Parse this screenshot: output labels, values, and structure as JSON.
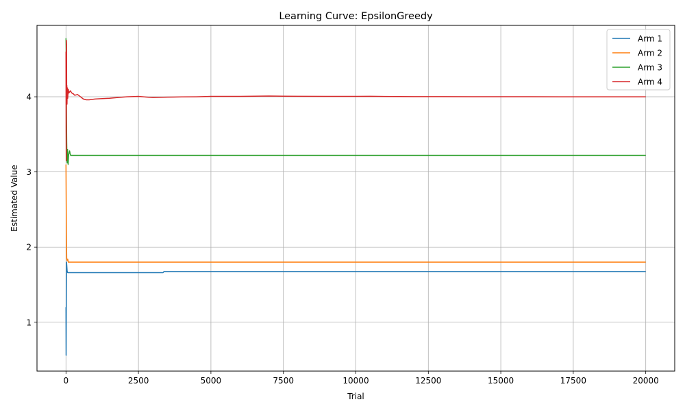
{
  "chart_data": {
    "type": "line",
    "title": "Learning Curve: EpsilonGreedy",
    "xlabel": "Trial",
    "ylabel": "Estimated Value",
    "xlim": [
      -1000,
      21000
    ],
    "ylim": [
      0.35,
      4.95
    ],
    "x_ticks": [
      0,
      2500,
      5000,
      7500,
      10000,
      12500,
      15000,
      17500,
      20000
    ],
    "x_tick_labels": [
      "0",
      "2500",
      "5000",
      "7500",
      "10000",
      "12500",
      "15000",
      "17500",
      "20000"
    ],
    "y_ticks": [
      1,
      2,
      3,
      4
    ],
    "y_tick_labels": [
      "1",
      "2",
      "3",
      "4"
    ],
    "grid": true,
    "legend_position": "top-right",
    "series": [
      {
        "name": "Arm 1",
        "color": "#1f77b4",
        "points": [
          [
            0,
            1.2
          ],
          [
            5,
            0.56
          ],
          [
            12,
            1.4
          ],
          [
            20,
            1.8
          ],
          [
            40,
            1.68
          ],
          [
            60,
            1.66
          ],
          [
            200,
            1.66
          ],
          [
            1000,
            1.66
          ],
          [
            2000,
            1.66
          ],
          [
            3350,
            1.66
          ],
          [
            3380,
            1.675
          ],
          [
            5000,
            1.675
          ],
          [
            10000,
            1.675
          ],
          [
            15000,
            1.675
          ],
          [
            20000,
            1.675
          ]
        ]
      },
      {
        "name": "Arm 2",
        "color": "#ff7f0e",
        "points": [
          [
            0,
            3.1
          ],
          [
            8,
            2.6
          ],
          [
            15,
            2.2
          ],
          [
            25,
            1.85
          ],
          [
            40,
            1.82
          ],
          [
            60,
            1.84
          ],
          [
            80,
            1.8
          ],
          [
            300,
            1.8
          ],
          [
            1000,
            1.8
          ],
          [
            5000,
            1.8
          ],
          [
            10000,
            1.8
          ],
          [
            15000,
            1.8
          ],
          [
            20000,
            1.8
          ]
        ]
      },
      {
        "name": "Arm 3",
        "color": "#2ca02c",
        "points": [
          [
            0,
            4.78
          ],
          [
            8,
            4.55
          ],
          [
            15,
            3.9
          ],
          [
            25,
            3.4
          ],
          [
            35,
            3.15
          ],
          [
            45,
            3.12
          ],
          [
            55,
            3.3
          ],
          [
            65,
            3.15
          ],
          [
            75,
            3.1
          ],
          [
            90,
            3.22
          ],
          [
            110,
            3.26
          ],
          [
            125,
            3.28
          ],
          [
            140,
            3.25
          ],
          [
            160,
            3.22
          ],
          [
            200,
            3.22
          ],
          [
            1000,
            3.22
          ],
          [
            5000,
            3.22
          ],
          [
            10000,
            3.22
          ],
          [
            15000,
            3.22
          ],
          [
            20000,
            3.22
          ]
        ]
      },
      {
        "name": "Arm 4",
        "color": "#d62728",
        "points": [
          [
            0,
            4.6
          ],
          [
            5,
            3.55
          ],
          [
            10,
            3.15
          ],
          [
            15,
            4.75
          ],
          [
            20,
            4.7
          ],
          [
            25,
            3.95
          ],
          [
            30,
            4.15
          ],
          [
            35,
            3.9
          ],
          [
            45,
            4.12
          ],
          [
            60,
            3.98
          ],
          [
            80,
            4.1
          ],
          [
            100,
            4.05
          ],
          [
            150,
            4.08
          ],
          [
            200,
            4.05
          ],
          [
            250,
            4.04
          ],
          [
            300,
            4.02
          ],
          [
            400,
            4.03
          ],
          [
            500,
            4.0
          ],
          [
            600,
            3.97
          ],
          [
            700,
            3.96
          ],
          [
            800,
            3.96
          ],
          [
            1000,
            3.97
          ],
          [
            1200,
            3.975
          ],
          [
            1500,
            3.98
          ],
          [
            1800,
            3.99
          ],
          [
            2100,
            4.0
          ],
          [
            2500,
            4.005
          ],
          [
            2800,
            3.995
          ],
          [
            3000,
            3.99
          ],
          [
            3500,
            3.995
          ],
          [
            4000,
            3.998
          ],
          [
            4500,
            4.0
          ],
          [
            5000,
            4.005
          ],
          [
            6000,
            4.005
          ],
          [
            7000,
            4.01
          ],
          [
            7500,
            4.008
          ],
          [
            8000,
            4.006
          ],
          [
            9000,
            4.005
          ],
          [
            10000,
            4.005
          ],
          [
            10500,
            4.007
          ],
          [
            11000,
            4.004
          ],
          [
            12000,
            4.002
          ],
          [
            13000,
            4.002
          ],
          [
            14000,
            4.001
          ],
          [
            15000,
            4.001
          ],
          [
            16000,
            4.001
          ],
          [
            17000,
            4.0
          ],
          [
            18000,
            4.0
          ],
          [
            19000,
            4.0
          ],
          [
            20000,
            4.0
          ]
        ]
      }
    ]
  }
}
